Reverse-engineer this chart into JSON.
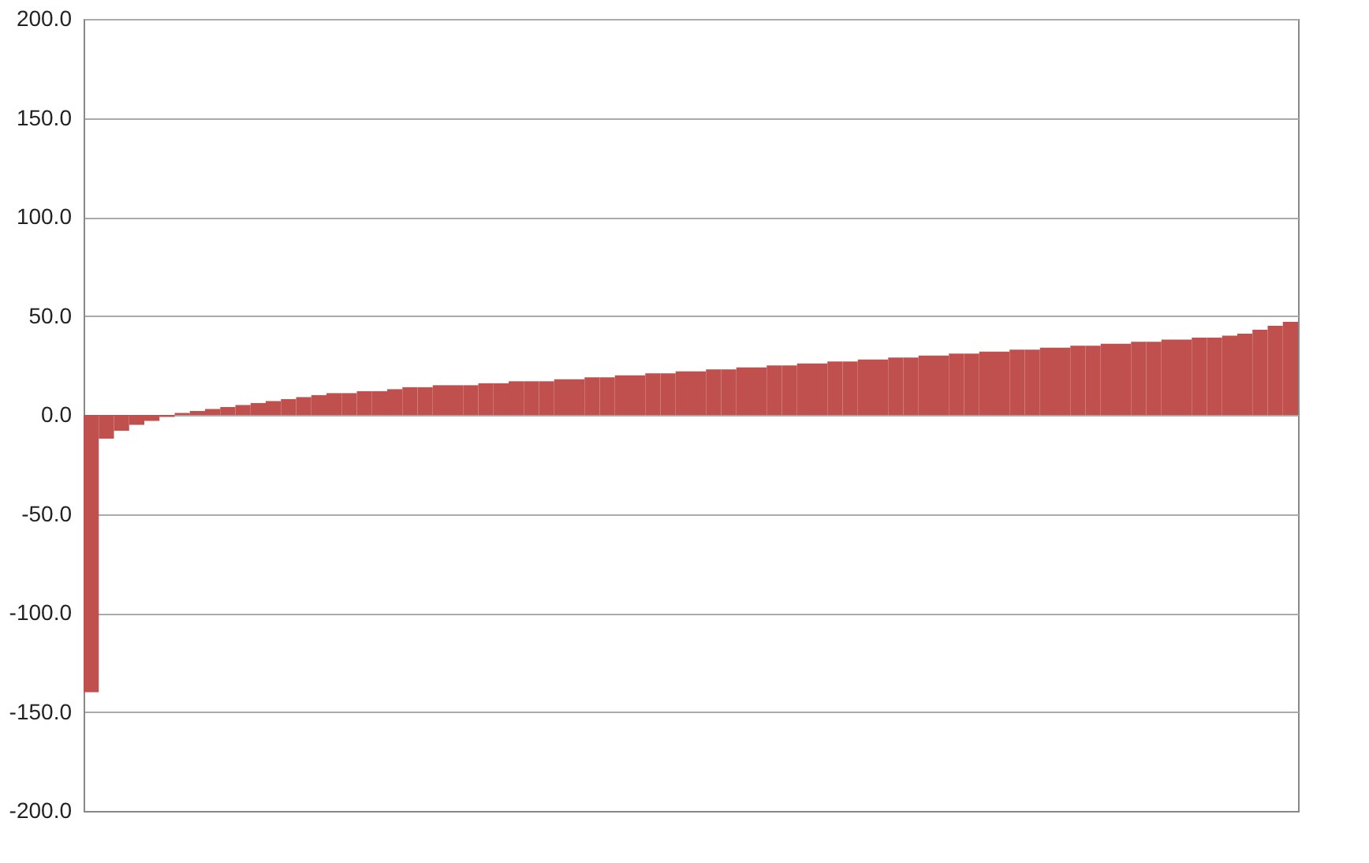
{
  "chart_data": {
    "type": "bar",
    "categories": [
      null,
      null,
      null,
      null,
      null,
      null,
      null,
      null,
      null,
      null,
      null,
      null,
      null,
      null,
      null,
      null,
      null,
      null,
      null,
      null,
      null,
      null,
      null,
      null,
      null,
      null,
      null,
      null,
      null,
      null,
      null,
      null,
      null,
      null,
      null,
      null,
      null,
      null,
      null,
      null,
      null,
      null,
      null,
      null,
      null,
      null,
      null,
      null,
      null,
      null,
      null,
      null,
      null,
      null,
      null,
      null,
      null,
      null,
      null,
      null,
      null,
      null,
      null,
      null,
      null,
      null,
      null,
      null,
      null,
      null,
      null,
      null,
      null,
      null,
      null,
      null,
      null,
      null,
      null,
      null
    ],
    "values": [
      -140,
      -12,
      -8,
      -5,
      -3,
      -1,
      1,
      2,
      3,
      4,
      5,
      6,
      7,
      8,
      9,
      10,
      11,
      11,
      12,
      12,
      13,
      14,
      14,
      15,
      15,
      15,
      16,
      16,
      17,
      17,
      17,
      18,
      18,
      19,
      19,
      20,
      20,
      21,
      21,
      22,
      22,
      23,
      23,
      24,
      24,
      25,
      25,
      26,
      26,
      27,
      27,
      28,
      28,
      29,
      29,
      30,
      30,
      31,
      31,
      32,
      32,
      33,
      33,
      34,
      34,
      35,
      35,
      36,
      36,
      37,
      37,
      38,
      38,
      39,
      39,
      40,
      41,
      43,
      45,
      47
    ],
    "color": "#c0504d",
    "ylim": [
      -200,
      200
    ],
    "yticks": [
      {
        "value": -200,
        "label": "-200.0"
      },
      {
        "value": -150,
        "label": "-150.0"
      },
      {
        "value": -100,
        "label": "-100.0"
      },
      {
        "value": -50,
        "label": "-50.0"
      },
      {
        "value": 0,
        "label": "0.0"
      },
      {
        "value": 50,
        "label": "50.0"
      },
      {
        "value": 100,
        "label": "100.0"
      },
      {
        "value": 150,
        "label": "150.0"
      },
      {
        "value": 200,
        "label": "200.0"
      }
    ],
    "grid": "y",
    "tick_labels": "y"
  }
}
